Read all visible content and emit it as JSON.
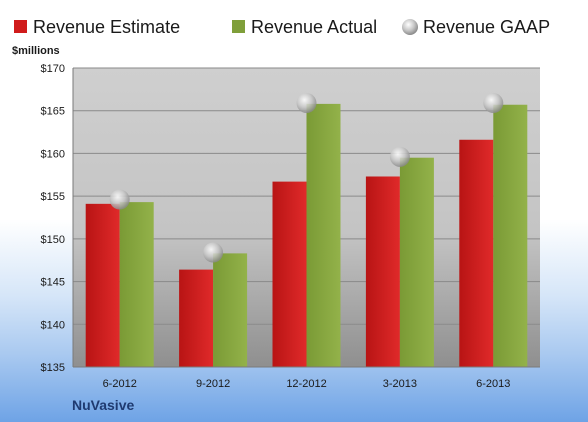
{
  "chart_data": {
    "type": "bar",
    "company": "NuVasive",
    "ylabel": "$millions",
    "ylim": [
      135,
      170
    ],
    "yticks": [
      "$170",
      "$165",
      "$160",
      "$155",
      "$150",
      "$145",
      "$140",
      "$135"
    ],
    "ytick_values": [
      170,
      165,
      160,
      155,
      150,
      145,
      140,
      135
    ],
    "categories": [
      "6-2012",
      "9-2012",
      "12-2012",
      "3-2013",
      "6-2013"
    ],
    "series": [
      {
        "name": "Revenue Estimate",
        "type": "bar",
        "color": "#d01b1b",
        "values": [
          154.1,
          146.4,
          156.7,
          157.3,
          161.6
        ]
      },
      {
        "name": "Revenue Actual",
        "type": "bar",
        "color": "#7f9f3a",
        "values": [
          154.3,
          148.3,
          165.8,
          159.5,
          165.7
        ]
      },
      {
        "name": "Revenue GAAP",
        "type": "marker",
        "color": "#bdbdbd",
        "values": [
          154.6,
          148.4,
          165.9,
          159.6,
          165.9
        ]
      }
    ],
    "legend_position": "top",
    "grid": true
  }
}
